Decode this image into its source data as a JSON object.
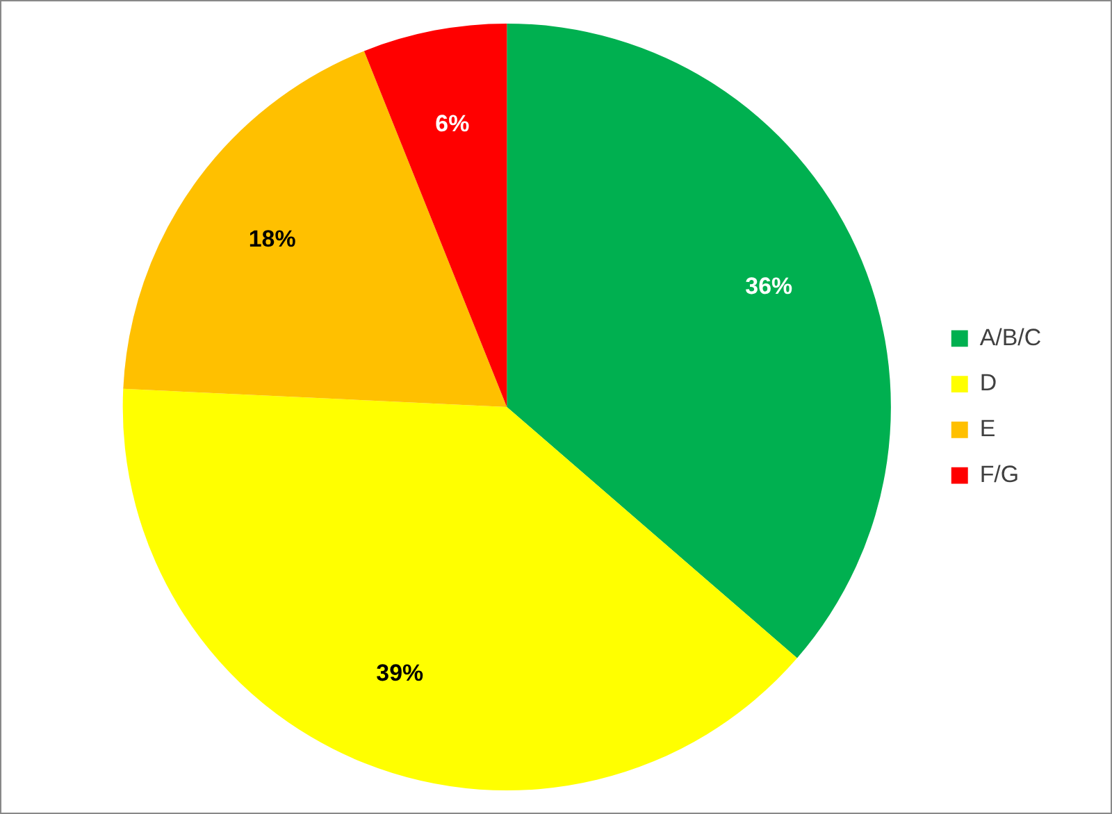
{
  "chart_data": {
    "type": "pie",
    "categories": [
      "A/B/C",
      "D",
      "E",
      "F/G"
    ],
    "values": [
      36,
      39,
      18,
      6
    ],
    "colors": [
      "#00b050",
      "#ffff00",
      "#ffc000",
      "#ff0000"
    ],
    "value_labels": [
      "36%",
      "39%",
      "18%",
      "6%"
    ],
    "legend": "right"
  }
}
